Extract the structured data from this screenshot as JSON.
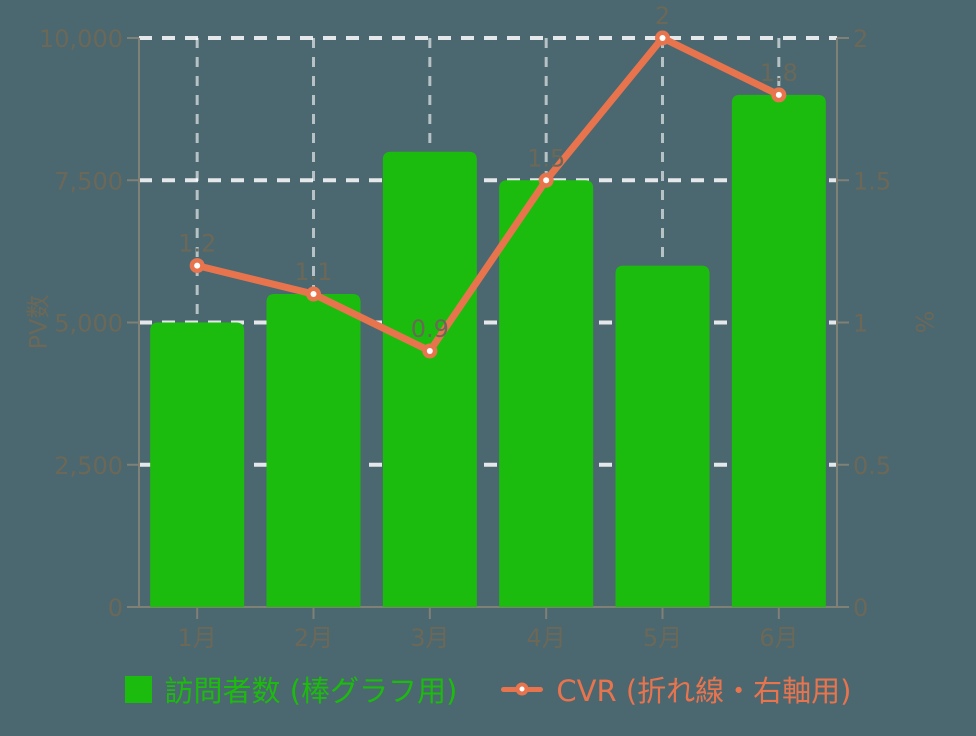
{
  "chart_data": {
    "type": "bar",
    "subtype": "combo-bar-line-dual-axis",
    "categories": [
      "1月",
      "2月",
      "3月",
      "4月",
      "5月",
      "6月"
    ],
    "series": [
      {
        "name": "訪問者数 (棒グラフ用)",
        "type": "bar",
        "axis": "left",
        "color": "#1cbc0e",
        "values": [
          5000,
          5500,
          8000,
          7500,
          6000,
          9000
        ]
      },
      {
        "name": "CVR (折れ線・右軸用)",
        "type": "line",
        "axis": "right",
        "color": "#e8744e",
        "values": [
          1.2,
          1.1,
          0.9,
          1.5,
          2,
          1.8
        ],
        "point_labels": [
          "1.2",
          "1.1",
          "0.9",
          "1.5",
          "2",
          "1.8"
        ]
      }
    ],
    "left_axis": {
      "title": "PV数",
      "min": 0,
      "max": 10000,
      "ticks": [
        0,
        2500,
        5000,
        7500,
        10000
      ],
      "tick_labels": [
        "0",
        "2,500",
        "5,000",
        "7,500",
        "10,000"
      ]
    },
    "right_axis": {
      "title": "%",
      "min": 0,
      "max": 2,
      "ticks": [
        0,
        0.5,
        1,
        1.5,
        2
      ],
      "tick_labels": [
        "0",
        "0.5",
        "1",
        "1.5",
        "2"
      ]
    },
    "grid": "dashed, on",
    "legend_position": "bottom",
    "colors": {
      "background": "#4b6770",
      "tick_text": "#6b6858",
      "data_label_text": "#6b6858",
      "axis_line": "#7f8076",
      "grid_line": "#ffffff"
    }
  }
}
